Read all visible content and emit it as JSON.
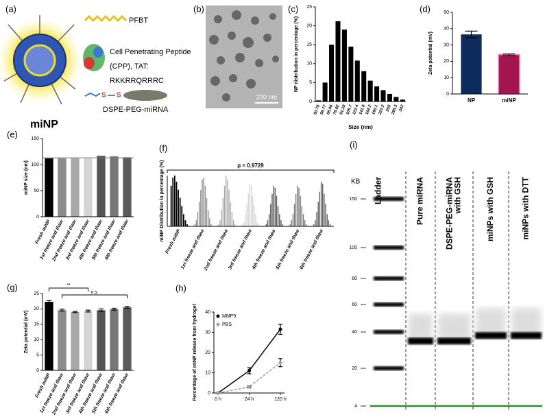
{
  "schematic": {
    "panel": "(a)",
    "particle": "miNP",
    "legend": [
      "PFBT",
      "Cell Penetrating Peptide",
      "(CPP), TAT:",
      "RKKRRQRRRC",
      "DSPE-PEG-miRNA"
    ]
  },
  "micrograph": {
    "panel": "(b)",
    "scale_bar": "200 nm"
  },
  "chart_data": [
    {
      "type": "bar",
      "panel": "(c)",
      "ylabel": "NP distribution in percentage (%)",
      "xlabel": "Size (nm)",
      "categories": [
        "50.75",
        "58.77",
        "68.06",
        "78.82",
        "91.28",
        "105.7",
        "122.4",
        "141.8",
        "164.2",
        "190.1",
        "220.2",
        "255",
        "295.3",
        "342"
      ],
      "values": [
        0.3,
        5,
        15,
        21.2,
        19,
        14.5,
        10.8,
        8,
        5.5,
        4,
        3,
        2,
        1.2,
        0.5
      ],
      "color": "#000000",
      "ylim": [
        0,
        25
      ],
      "yticks": [
        0,
        5,
        10,
        15,
        20,
        25
      ]
    },
    {
      "type": "bar",
      "panel": "(d)",
      "ylabel": "Zeta potential (mV)",
      "categories": [
        "NP",
        "miNP"
      ],
      "values": [
        36.5,
        24
      ],
      "errors": [
        2,
        0.5
      ],
      "colors": [
        "#0d2b5b",
        "#a3154f"
      ],
      "ylim": [
        0,
        50
      ],
      "yticks": [
        0,
        10,
        20,
        30,
        40,
        50
      ]
    },
    {
      "type": "bar",
      "panel": "(e)",
      "ylabel": "miNP size (nm)",
      "categories": [
        "Fresh miNP",
        "1st freeze and thaw",
        "2nd freeze and thaw",
        "3rd freeze and thaw",
        "4th freeze and thaw",
        "5th freeze and thaw",
        "6th freeze and thaw"
      ],
      "values": [
        112,
        112,
        112,
        112,
        117,
        116,
        114
      ],
      "colors": [
        "#000000",
        "#8c8c8c",
        "#a8a8a8",
        "#d4d4d4",
        "#555555",
        "#777777",
        "#5c5c5c"
      ],
      "reference_line": 113,
      "ylim": [
        0,
        150
      ],
      "yticks": [
        0,
        50,
        100,
        150
      ]
    },
    {
      "type": "distribution",
      "panel": "(f)",
      "ylabel": "miNP Distribution in percentage (%)",
      "annotation": "p = 0.9729",
      "categories": [
        "Fresh miNP",
        "1st freeze and thaw",
        "2nd freeze and thaw",
        "3rd freeze and thaw",
        "4th freeze and thaw",
        "5th freeze and thaw",
        "6th freeze and thaw"
      ],
      "values": [
        [
          20,
          24,
          25,
          22,
          18,
          14,
          10,
          6,
          3,
          1
        ],
        [
          1,
          3,
          7,
          12,
          18,
          23,
          24,
          20,
          14,
          8,
          4,
          1
        ],
        [
          1,
          3,
          8,
          14,
          20,
          25,
          23,
          18,
          12,
          7,
          3,
          1
        ],
        [
          1,
          2,
          6,
          11,
          16,
          21,
          20,
          15,
          10,
          6,
          2,
          1
        ],
        [
          1,
          3,
          6,
          11,
          16,
          20,
          19,
          15,
          10,
          6,
          3,
          1
        ],
        [
          1,
          3,
          6,
          11,
          16,
          20,
          19,
          15,
          10,
          6,
          3,
          1
        ],
        [
          1,
          3,
          7,
          12,
          17,
          22,
          21,
          16,
          11,
          6,
          3,
          1
        ]
      ],
      "colors": [
        "#000000",
        "#8c8c8c",
        "#a8a8a8",
        "#d4d4d4",
        "#555555",
        "#777777",
        "#5c5c5c"
      ],
      "ylim": [
        0,
        25
      ]
    },
    {
      "type": "bar",
      "panel": "(g)",
      "ylabel": "Zeta potential (mV)",
      "categories": [
        "Fresh miNP",
        "1st freeze and thaw",
        "2nd freeze and thaw",
        "3rd freeze and thaw",
        "4th freeze and thaw",
        "5th freeze and thaw",
        "6th freeze and thaw"
      ],
      "values": [
        22.3,
        19.6,
        19,
        19.3,
        19.6,
        19.9,
        20.5
      ],
      "errors": [
        0.4,
        0.3,
        0.2,
        0.3,
        0.4,
        0.3,
        0.3
      ],
      "colors": [
        "#000000",
        "#8c8c8c",
        "#a8a8a8",
        "#d4d4d4",
        "#555555",
        "#777777",
        "#5c5c5c"
      ],
      "annotations": [
        "**",
        "n.s."
      ],
      "ylim": [
        0,
        25
      ],
      "yticks": [
        0,
        5,
        10,
        15,
        20,
        25
      ]
    },
    {
      "type": "line",
      "panel": "(h)",
      "ylabel": "Percentage of miNP release from hydrogel",
      "categories": [
        "0 h",
        "24 h",
        "120 h"
      ],
      "series": [
        {
          "name": "MMP9",
          "color": "#000000",
          "values": [
            0,
            11,
            31.5
          ],
          "errors": [
            0,
            1.5,
            2.5
          ]
        },
        {
          "name": "PBS",
          "color": "#a0a0a0",
          "values": [
            0,
            3,
            15
          ],
          "errors": [
            0,
            0.5,
            2
          ]
        }
      ],
      "legend": "top-left",
      "ylim": [
        0,
        40
      ],
      "yticks": [
        0,
        10,
        20,
        30,
        40
      ]
    },
    {
      "type": "gel",
      "panel": "(i)",
      "ylabel": "KB",
      "categories": [
        [
          "Ladder"
        ],
        [
          "Pure miRNA"
        ],
        [
          "DSPE-PEG-miRNA",
          "with GSH"
        ],
        [
          "miNPs with GSH"
        ],
        [
          "miNPs with DTT"
        ]
      ],
      "values": [
        null,
        35,
        35,
        38,
        38
      ],
      "yticks": [
        150,
        100,
        80,
        60,
        40,
        20,
        4
      ]
    }
  ]
}
